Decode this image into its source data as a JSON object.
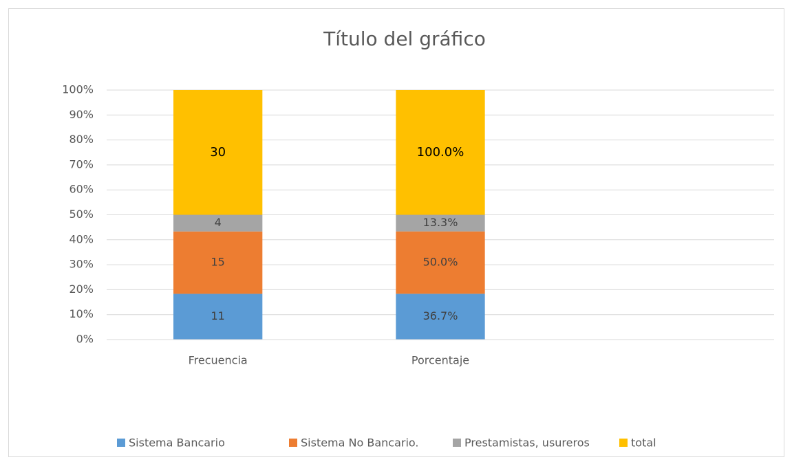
{
  "chart_data": {
    "type": "stacked-percent-bar",
    "title": "Título del gráfico",
    "categories": [
      "Frecuencia",
      "Porcentaje",
      null
    ],
    "series": [
      {
        "name": "Sistema Bancario",
        "color": "#5b9bd5",
        "values": [
          11,
          36.7,
          null
        ],
        "value_labels": [
          null,
          "36.7%",
          null
        ]
      },
      {
        "name": "Sistema No Bancario.",
        "color": "#ed7d31",
        "values": [
          15,
          50.0,
          null
        ],
        "value_labels": [
          null,
          "50.0%",
          null
        ]
      },
      {
        "name": "Prestamistas, usureros",
        "color": "#a5a5a5",
        "values": [
          4,
          13.3,
          null
        ],
        "value_labels": [
          null,
          "13.3%",
          null
        ]
      },
      {
        "name": "total",
        "color": "#ffc000",
        "values": [
          30,
          100.0,
          null
        ],
        "value_labels": [
          null,
          "100.0%",
          null
        ]
      }
    ],
    "ylim": [
      0,
      100
    ],
    "yticks": [
      {
        "value": 0,
        "label": "0%"
      },
      {
        "value": 10,
        "label": "10%"
      },
      {
        "value": 20,
        "label": "20%"
      },
      {
        "value": 30,
        "label": "30%"
      },
      {
        "value": 40,
        "label": "40%"
      },
      {
        "value": 50,
        "label": "50%"
      },
      {
        "value": 60,
        "label": "60%"
      },
      {
        "value": 70,
        "label": "70%"
      },
      {
        "value": 80,
        "label": "80%"
      },
      {
        "value": 90,
        "label": "90%"
      },
      {
        "value": 100,
        "label": "100%"
      }
    ],
    "grid": true,
    "legend": "bottom"
  }
}
